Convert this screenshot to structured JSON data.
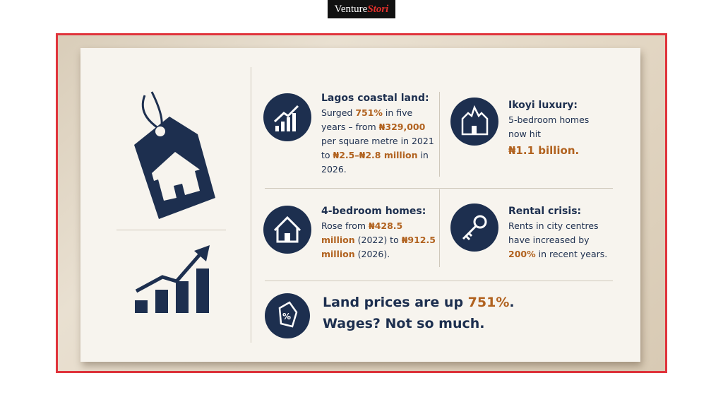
{
  "logo": {
    "part1": "Venture",
    "part2": "Stori"
  },
  "cards": [
    {
      "title": "Lagos coastal land:",
      "body": [
        {
          "text": "Surged "
        },
        {
          "text": "751%",
          "highlight": true
        },
        {
          "text": " in five years – from "
        },
        {
          "text": "₦329,000",
          "highlight": true
        },
        {
          "text": " per square metre in 2021 to "
        },
        {
          "text": "₦2.5–₦2.8 million",
          "highlight": true
        },
        {
          "text": " in 2026."
        }
      ]
    },
    {
      "title": "Ikoyi luxury:",
      "body": [
        {
          "text": "5-bedroom homes now hit"
        }
      ],
      "figure": "₦1.1 billion."
    },
    {
      "title": "4-bedroom homes:",
      "body": [
        {
          "text": "Rose from "
        },
        {
          "text": "₦428.5 million",
          "highlight": true
        },
        {
          "text": " (2022) to "
        },
        {
          "text": "₦912.5 million",
          "highlight": true
        },
        {
          "text": " (2026)."
        }
      ]
    },
    {
      "title": "Rental crisis:",
      "body": [
        {
          "text": "Rents in city centres have increased by "
        },
        {
          "text": "200%",
          "highlight": true
        },
        {
          "text": " in recent years."
        }
      ]
    }
  ],
  "footer": {
    "lines": [
      [
        {
          "text": "Land prices are up "
        },
        {
          "text": "751%",
          "highlight": true
        },
        {
          "text": "."
        }
      ],
      [
        {
          "text": "Wages? Not so much."
        }
      ]
    ]
  }
}
